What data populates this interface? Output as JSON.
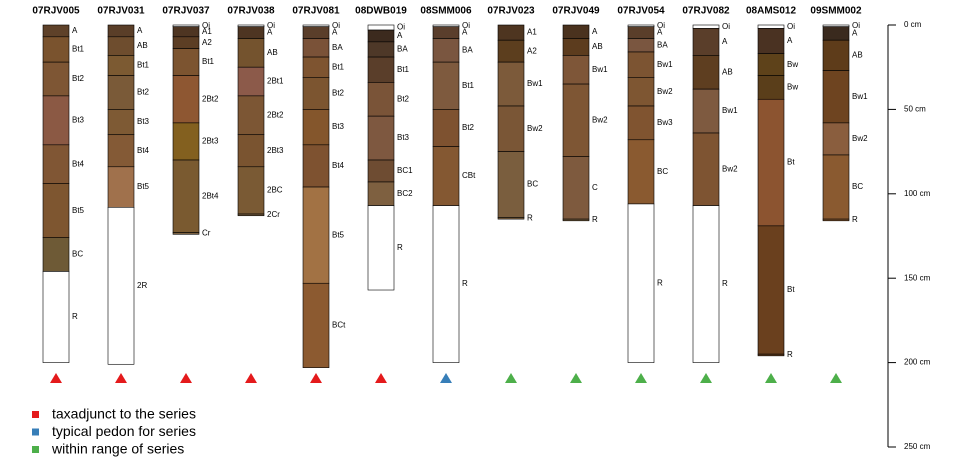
{
  "chart_data": {
    "type": "soil-profile",
    "ylim": [
      0,
      250
    ],
    "yticks": [
      {
        "value": 0,
        "label": "0 cm"
      },
      {
        "value": 50,
        "label": "50 cm"
      },
      {
        "value": 100,
        "label": "100 cm"
      },
      {
        "value": 150,
        "label": "150 cm"
      },
      {
        "value": 200,
        "label": "200 cm"
      },
      {
        "value": 250,
        "label": "250 cm"
      }
    ],
    "legend": [
      {
        "label": "taxadjunct to the series",
        "color": "#e41a1c"
      },
      {
        "label": "typical pedon for series",
        "color": "#377eb8"
      },
      {
        "label": "within range of series",
        "color": "#4daf4a"
      }
    ],
    "profiles": [
      {
        "name": "07RJV005",
        "marker_color": "#e41a1c",
        "horizons": [
          {
            "name": "A",
            "top": 0,
            "bottom": 7,
            "color": "#5e4129"
          },
          {
            "name": "Bt1",
            "top": 7,
            "bottom": 22,
            "color": "#7a532e"
          },
          {
            "name": "Bt2",
            "top": 22,
            "bottom": 42,
            "color": "#7e5634"
          },
          {
            "name": "Bt3",
            "top": 42,
            "bottom": 71,
            "color": "#8b5944"
          },
          {
            "name": "Bt4",
            "top": 71,
            "bottom": 94,
            "color": "#805634"
          },
          {
            "name": "Bt5",
            "top": 94,
            "bottom": 126,
            "color": "#7e5630"
          },
          {
            "name": "BC",
            "top": 126,
            "bottom": 146,
            "color": "#6e5a36"
          },
          {
            "name": "R",
            "top": 146,
            "bottom": 200,
            "color": "#ffffff"
          }
        ]
      },
      {
        "name": "07RJV031",
        "marker_color": "#e41a1c",
        "horizons": [
          {
            "name": "A",
            "top": 0,
            "bottom": 7,
            "color": "#5a3e28"
          },
          {
            "name": "AB",
            "top": 7,
            "bottom": 18,
            "color": "#6e4d2e"
          },
          {
            "name": "Bt1",
            "top": 18,
            "bottom": 30,
            "color": "#7c5a32"
          },
          {
            "name": "Bt2",
            "top": 30,
            "bottom": 50,
            "color": "#7a5a38"
          },
          {
            "name": "Bt3",
            "top": 50,
            "bottom": 65,
            "color": "#7e5a34"
          },
          {
            "name": "Bt4",
            "top": 65,
            "bottom": 84,
            "color": "#845a36"
          },
          {
            "name": "Bt5",
            "top": 84,
            "bottom": 108,
            "color": "#a0714c"
          },
          {
            "name": "2R",
            "top": 108,
            "bottom": 201,
            "color": "#ffffff"
          }
        ]
      },
      {
        "name": "07RJV037",
        "marker_color": "#e41a1c",
        "horizons": [
          {
            "name": "Oi",
            "top": 0,
            "bottom": 1,
            "color": "#ffffff"
          },
          {
            "name": "A1",
            "top": 1,
            "bottom": 7,
            "color": "#4e3522"
          },
          {
            "name": "A2",
            "top": 7,
            "bottom": 14,
            "color": "#5c3e24"
          },
          {
            "name": "Bt1",
            "top": 14,
            "bottom": 30,
            "color": "#7c5430"
          },
          {
            "name": "2Bt2",
            "top": 30,
            "bottom": 58,
            "color": "#8e5732"
          },
          {
            "name": "2Bt3",
            "top": 58,
            "bottom": 80,
            "color": "#83601f"
          },
          {
            "name": "2Bt4",
            "top": 80,
            "bottom": 123,
            "color": "#7a5a30"
          },
          {
            "name": "Cr",
            "top": 123,
            "bottom": 124,
            "color": "#7a6040"
          }
        ]
      },
      {
        "name": "07RJV038",
        "marker_color": "#e41a1c",
        "horizons": [
          {
            "name": "Oi",
            "top": 0,
            "bottom": 1,
            "color": "#ffffff"
          },
          {
            "name": "A",
            "top": 1,
            "bottom": 8,
            "color": "#4e3522"
          },
          {
            "name": "AB",
            "top": 8,
            "bottom": 25,
            "color": "#74532e"
          },
          {
            "name": "2Bt1",
            "top": 25,
            "bottom": 42,
            "color": "#8c5a4a"
          },
          {
            "name": "2Bt2",
            "top": 42,
            "bottom": 65,
            "color": "#7c5634"
          },
          {
            "name": "2Bt3",
            "top": 65,
            "bottom": 84,
            "color": "#7a5430"
          },
          {
            "name": "2BC",
            "top": 84,
            "bottom": 112,
            "color": "#7a5a34"
          },
          {
            "name": "2Cr",
            "top": 112,
            "bottom": 113,
            "color": "#7a6040"
          }
        ]
      },
      {
        "name": "07RJV081",
        "marker_color": "#e41a1c",
        "horizons": [
          {
            "name": "Oi",
            "top": 0,
            "bottom": 1,
            "color": "#ffffff"
          },
          {
            "name": "A",
            "top": 1,
            "bottom": 8,
            "color": "#5a3e2a"
          },
          {
            "name": "BA",
            "top": 8,
            "bottom": 19,
            "color": "#7a5238"
          },
          {
            "name": "Bt1",
            "top": 19,
            "bottom": 31,
            "color": "#7e5430"
          },
          {
            "name": "Bt2",
            "top": 31,
            "bottom": 50,
            "color": "#7c5530"
          },
          {
            "name": "Bt3",
            "top": 50,
            "bottom": 71,
            "color": "#84562c"
          },
          {
            "name": "Bt4",
            "top": 71,
            "bottom": 96,
            "color": "#7e5230"
          },
          {
            "name": "Bt5",
            "top": 96,
            "bottom": 153,
            "color": "#a27244"
          },
          {
            "name": "BCt",
            "top": 153,
            "bottom": 203,
            "color": "#8c5a30"
          }
        ]
      },
      {
        "name": "08DWB019",
        "marker_color": "#e41a1c",
        "horizons": [
          {
            "name": "Oi",
            "top": 0,
            "bottom": 3,
            "color": "#ffffff"
          },
          {
            "name": "A",
            "top": 3,
            "bottom": 10,
            "color": "#3c2a1e"
          },
          {
            "name": "BA",
            "top": 10,
            "bottom": 19,
            "color": "#4e3828"
          },
          {
            "name": "Bt1",
            "top": 19,
            "bottom": 34,
            "color": "#5a3e2a"
          },
          {
            "name": "Bt2",
            "top": 34,
            "bottom": 54,
            "color": "#7a5438"
          },
          {
            "name": "Bt3",
            "top": 54,
            "bottom": 80,
            "color": "#7e5840"
          },
          {
            "name": "BC1",
            "top": 80,
            "bottom": 93,
            "color": "#6e4c32"
          },
          {
            "name": "BC2",
            "top": 93,
            "bottom": 107,
            "color": "#7e6040"
          },
          {
            "name": "R",
            "top": 107,
            "bottom": 157,
            "color": "#ffffff"
          }
        ]
      },
      {
        "name": "08SMM006",
        "marker_color": "#377eb8",
        "horizons": [
          {
            "name": "Oi",
            "top": 0,
            "bottom": 1,
            "color": "#ffffff"
          },
          {
            "name": "A",
            "top": 1,
            "bottom": 8,
            "color": "#5a3e2c"
          },
          {
            "name": "BA",
            "top": 8,
            "bottom": 22,
            "color": "#7a5640"
          },
          {
            "name": "Bt1",
            "top": 22,
            "bottom": 50,
            "color": "#7e5a3e"
          },
          {
            "name": "Bt2",
            "top": 50,
            "bottom": 72,
            "color": "#7e5230"
          },
          {
            "name": "CBt",
            "top": 72,
            "bottom": 107,
            "color": "#845832"
          },
          {
            "name": "R",
            "top": 107,
            "bottom": 200,
            "color": "#ffffff"
          }
        ]
      },
      {
        "name": "07RJV023",
        "marker_color": "#4daf4a",
        "horizons": [
          {
            "name": "A1",
            "top": 0,
            "bottom": 9,
            "color": "#4e3520"
          },
          {
            "name": "A2",
            "top": 9,
            "bottom": 22,
            "color": "#5c3e1e"
          },
          {
            "name": "Bw1",
            "top": 22,
            "bottom": 48,
            "color": "#7c5a3a"
          },
          {
            "name": "Bw2",
            "top": 48,
            "bottom": 75,
            "color": "#7a5636"
          },
          {
            "name": "BC",
            "top": 75,
            "bottom": 114,
            "color": "#7a5e3e"
          },
          {
            "name": "R",
            "top": 114,
            "bottom": 115,
            "color": "#7a6040"
          }
        ]
      },
      {
        "name": "07RJV049",
        "marker_color": "#4daf4a",
        "horizons": [
          {
            "name": "A",
            "top": 0,
            "bottom": 8,
            "color": "#4a321e"
          },
          {
            "name": "AB",
            "top": 8,
            "bottom": 18,
            "color": "#5c3c1e"
          },
          {
            "name": "Bw1",
            "top": 18,
            "bottom": 35,
            "color": "#7e5638"
          },
          {
            "name": "Bw2",
            "top": 35,
            "bottom": 78,
            "color": "#7e5634"
          },
          {
            "name": "C",
            "top": 78,
            "bottom": 115,
            "color": "#7e5a3e"
          },
          {
            "name": "R",
            "top": 115,
            "bottom": 116,
            "color": "#7a6040"
          }
        ]
      },
      {
        "name": "07RJV054",
        "marker_color": "#4daf4a",
        "horizons": [
          {
            "name": "Oi",
            "top": 0,
            "bottom": 1,
            "color": "#ffffff"
          },
          {
            "name": "A",
            "top": 1,
            "bottom": 8,
            "color": "#5a3e2a"
          },
          {
            "name": "BA",
            "top": 8,
            "bottom": 16,
            "color": "#7a5640"
          },
          {
            "name": "Bw1",
            "top": 16,
            "bottom": 31,
            "color": "#7c5432"
          },
          {
            "name": "Bw2",
            "top": 31,
            "bottom": 48,
            "color": "#7e5632"
          },
          {
            "name": "Bw3",
            "top": 48,
            "bottom": 68,
            "color": "#805430"
          },
          {
            "name": "BC",
            "top": 68,
            "bottom": 106,
            "color": "#8a5a30"
          },
          {
            "name": "R",
            "top": 106,
            "bottom": 200,
            "color": "#ffffff"
          }
        ]
      },
      {
        "name": "07RJV082",
        "marker_color": "#4daf4a",
        "horizons": [
          {
            "name": "Oi",
            "top": 0,
            "bottom": 2,
            "color": "#ffffff"
          },
          {
            "name": "A",
            "top": 2,
            "bottom": 18,
            "color": "#5a3e2a"
          },
          {
            "name": "AB",
            "top": 18,
            "bottom": 38,
            "color": "#5e3e20"
          },
          {
            "name": "Bw1",
            "top": 38,
            "bottom": 64,
            "color": "#7e5a40"
          },
          {
            "name": "Bw2",
            "top": 64,
            "bottom": 107,
            "color": "#7e5432"
          },
          {
            "name": "R",
            "top": 107,
            "bottom": 200,
            "color": "#ffffff"
          }
        ]
      },
      {
        "name": "08AMS012",
        "marker_color": "#4daf4a",
        "horizons": [
          {
            "name": "Oi",
            "top": 0,
            "bottom": 2,
            "color": "#ffffff"
          },
          {
            "name": "A",
            "top": 2,
            "bottom": 17,
            "color": "#4a3222"
          },
          {
            "name": "Bw",
            "top": 17,
            "bottom": 30,
            "color": "#5e421a"
          },
          {
            "name": "Bw",
            "top": 30,
            "bottom": 44,
            "color": "#5a3e1a"
          },
          {
            "name": "Bt",
            "top": 44,
            "bottom": 119,
            "color": "#8c5430"
          },
          {
            "name": "Bt",
            "top": 119,
            "bottom": 195,
            "color": "#6a401e"
          },
          {
            "name": "R",
            "top": 195,
            "bottom": 196,
            "color": "#6a401e"
          }
        ]
      },
      {
        "name": "09SMM002",
        "marker_color": "#4daf4a",
        "horizons": [
          {
            "name": "Oi",
            "top": 0,
            "bottom": 1,
            "color": "#ffffff"
          },
          {
            "name": "A",
            "top": 1,
            "bottom": 9,
            "color": "#3a2a1e"
          },
          {
            "name": "AB",
            "top": 9,
            "bottom": 27,
            "color": "#5e3c1a"
          },
          {
            "name": "Bw1",
            "top": 27,
            "bottom": 58,
            "color": "#6e4420"
          },
          {
            "name": "Bw2",
            "top": 58,
            "bottom": 77,
            "color": "#8a5e3e"
          },
          {
            "name": "BC",
            "top": 77,
            "bottom": 115,
            "color": "#8a5a30"
          },
          {
            "name": "R",
            "top": 115,
            "bottom": 116,
            "color": "#8a5a30"
          }
        ]
      }
    ]
  }
}
